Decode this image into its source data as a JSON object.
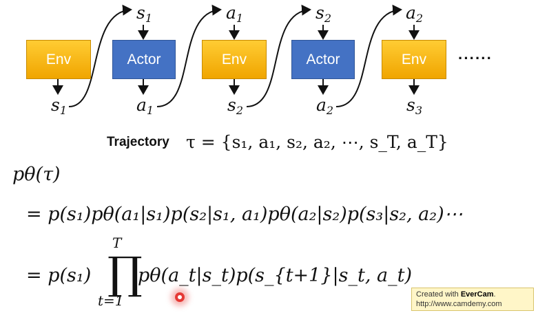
{
  "boxes": [
    {
      "label": "Env",
      "kind": "env"
    },
    {
      "label": "Actor",
      "kind": "actor"
    },
    {
      "label": "Env",
      "kind": "env"
    },
    {
      "label": "Actor",
      "kind": "actor"
    },
    {
      "label": "Env",
      "kind": "env"
    }
  ],
  "continuation": "······",
  "top_labels": [
    {
      "base": "s",
      "sub": "1"
    },
    {
      "base": "a",
      "sub": "1"
    },
    {
      "base": "s",
      "sub": "2"
    },
    {
      "base": "a",
      "sub": "2"
    }
  ],
  "bottom_labels": [
    {
      "base": "s",
      "sub": "1"
    },
    {
      "base": "a",
      "sub": "1"
    },
    {
      "base": "s",
      "sub": "2"
    },
    {
      "base": "a",
      "sub": "2"
    },
    {
      "base": "s",
      "sub": "3"
    }
  ],
  "trajectory": {
    "word": "Trajectory",
    "formula": "τ = {s₁, a₁, s₂, a₂, ⋯, s_T, a_T}"
  },
  "equations": {
    "line1": "pθ(τ)",
    "line2": "= p(s₁)pθ(a₁|s₁)p(s₂|s₁, a₁)pθ(a₂|s₂)p(s₃|s₂, a₂)⋯",
    "line3_left": "= p(s₁)",
    "prod_symbol": "∏",
    "prod_upper": "T",
    "prod_lower": "t=1",
    "line3_right": "pθ(a_t|s_t)p(s_{t+1}|s_t, a_t)"
  },
  "watermark": {
    "line1_prefix": "Created with ",
    "line1_brand": "EverCam",
    "line1_suffix": ".",
    "line2": "http://www.camdemy.com"
  },
  "colors": {
    "env": "#f5b400",
    "actor": "#4472c4"
  }
}
